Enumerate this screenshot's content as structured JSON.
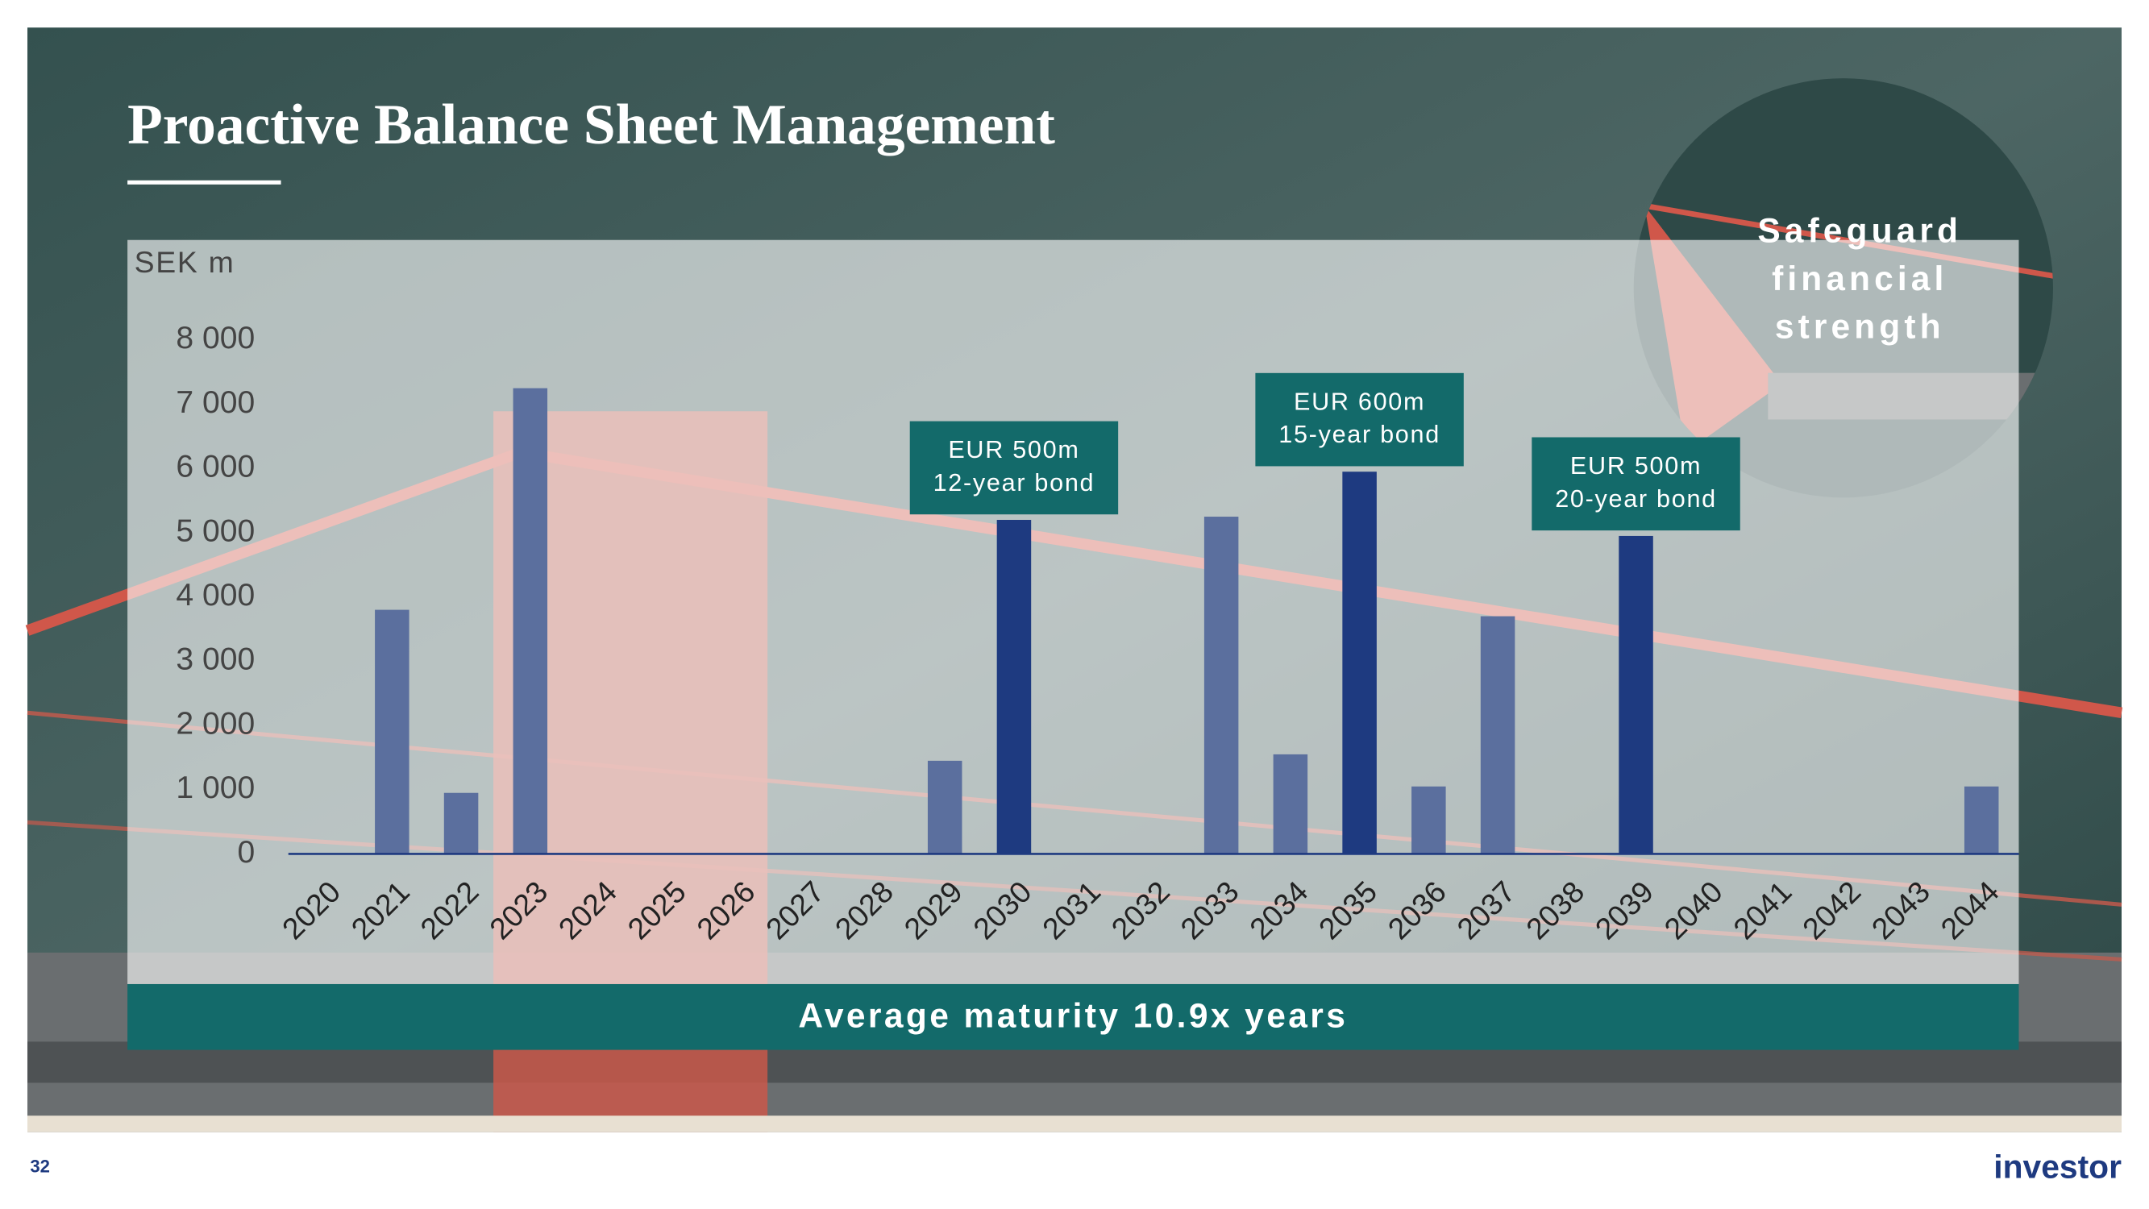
{
  "title": "Proactive Balance Sheet Management",
  "circle_text": [
    "Safeguard",
    "financial",
    "strength"
  ],
  "banner": "Average maturity 10.9x years",
  "page_number": "32",
  "logo": "investor",
  "chart_data": {
    "type": "bar",
    "unit_label": "SEK m",
    "categories": [
      "2020",
      "2021",
      "2022",
      "2023",
      "2024",
      "2025",
      "2026",
      "2027",
      "2028",
      "2029",
      "2030",
      "2031",
      "2032",
      "2033",
      "2034",
      "2035",
      "2036",
      "2037",
      "2038",
      "2039",
      "2040",
      "2041",
      "2042",
      "2043",
      "2044"
    ],
    "values": [
      0,
      3800,
      950,
      7250,
      0,
      0,
      0,
      0,
      0,
      1450,
      5200,
      0,
      0,
      5250,
      1550,
      5950,
      1050,
      3700,
      0,
      4950,
      0,
      0,
      0,
      0,
      1050
    ],
    "colors": [
      "#5b6f9e",
      "#5b6f9e",
      "#5b6f9e",
      "#5b6f9e",
      "#5b6f9e",
      "#5b6f9e",
      "#5b6f9e",
      "#5b6f9e",
      "#5b6f9e",
      "#5b6f9e",
      "#1e3a80",
      "#5b6f9e",
      "#5b6f9e",
      "#5b6f9e",
      "#5b6f9e",
      "#1e3a80",
      "#5b6f9e",
      "#5b6f9e",
      "#5b6f9e",
      "#1e3a80",
      "#5b6f9e",
      "#5b6f9e",
      "#5b6f9e",
      "#5b6f9e",
      "#5b6f9e"
    ],
    "ylim": [
      0,
      8000
    ],
    "yticks": [
      0,
      {
        "value": 1000,
        "label": "1 000"
      },
      {
        "value": 2000,
        "label": "2 000"
      },
      {
        "value": 3000,
        "label": "3 000"
      },
      {
        "value": 4000,
        "label": "4 000"
      },
      {
        "value": 5000,
        "label": "5 000"
      },
      {
        "value": 6000,
        "label": "6 000"
      },
      {
        "value": 7000,
        "label": "7 000"
      },
      {
        "value": 8000,
        "label": "8 000"
      }
    ],
    "annotations": [
      {
        "category": "2030",
        "lines": [
          "EUR 500m",
          "12-year bond"
        ]
      },
      {
        "category": "2035",
        "lines": [
          "EUR 600m",
          "15-year bond"
        ]
      },
      {
        "category": "2039",
        "lines": [
          "EUR 500m",
          "20-year bond"
        ]
      }
    ]
  }
}
